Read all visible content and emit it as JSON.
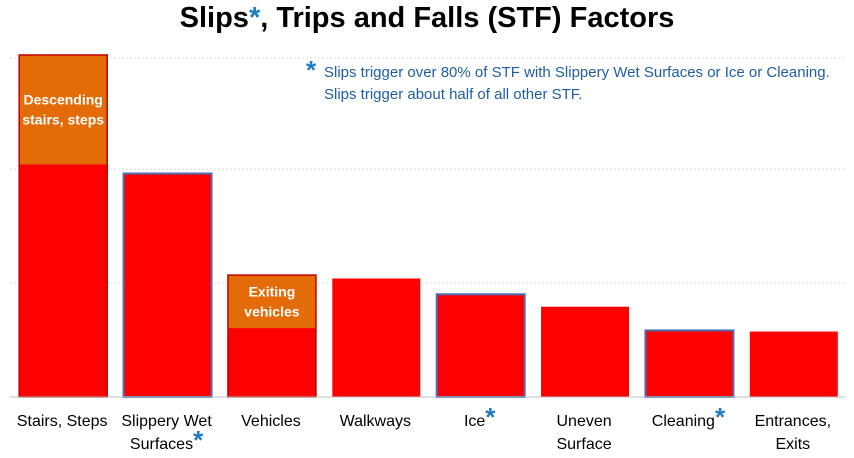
{
  "title": {
    "text": "Slips",
    "star": "*",
    "rest": ", Trips and Falls (STF) Factors"
  },
  "note": {
    "star": "*",
    "line1": "Slips trigger over 80% of STF with Slippery Wet Surfaces or Ice or Cleaning.",
    "line2": "Slips trigger about half of all other STF."
  },
  "colors": {
    "bar": "#ff0000",
    "callout": "#e36c09",
    "star": "#1f7bc4",
    "grid": "#d9d9d9"
  },
  "chart_data": {
    "type": "bar",
    "title": "Slips*, Trips and Falls (STF) Factors",
    "categories": [
      "Stairs, Steps",
      "Slippery Wet Surfaces",
      "Vehicles",
      "Walkways",
      "Ice",
      "Uneven Surface",
      "Cleaning",
      "Entrances, Exits"
    ],
    "category_labels": [
      [
        "Stairs, Steps"
      ],
      [
        "Slippery Wet",
        "Surfaces"
      ],
      [
        "Vehicles"
      ],
      [
        "Walkways"
      ],
      [
        "Ice"
      ],
      [
        "Uneven",
        "Surface"
      ],
      [
        "Cleaning"
      ],
      [
        "Entrances,",
        "Exits"
      ]
    ],
    "slip_marked": [
      false,
      true,
      false,
      false,
      true,
      false,
      true,
      false
    ],
    "values": [
      30.3,
      19.8,
      10.8,
      10.5,
      9.1,
      8.0,
      5.9,
      5.8
    ],
    "ylim": [
      0,
      30.3
    ],
    "grid": true,
    "highlights": [
      {
        "category": "Stairs, Steps",
        "label": [
          "Descending",
          "stairs, steps"
        ],
        "from": 20.6,
        "to": 30.3
      },
      {
        "category": "Vehicles",
        "label": [
          "Exiting",
          "vehicles"
        ],
        "from": 6.1,
        "to": 10.8
      }
    ]
  }
}
